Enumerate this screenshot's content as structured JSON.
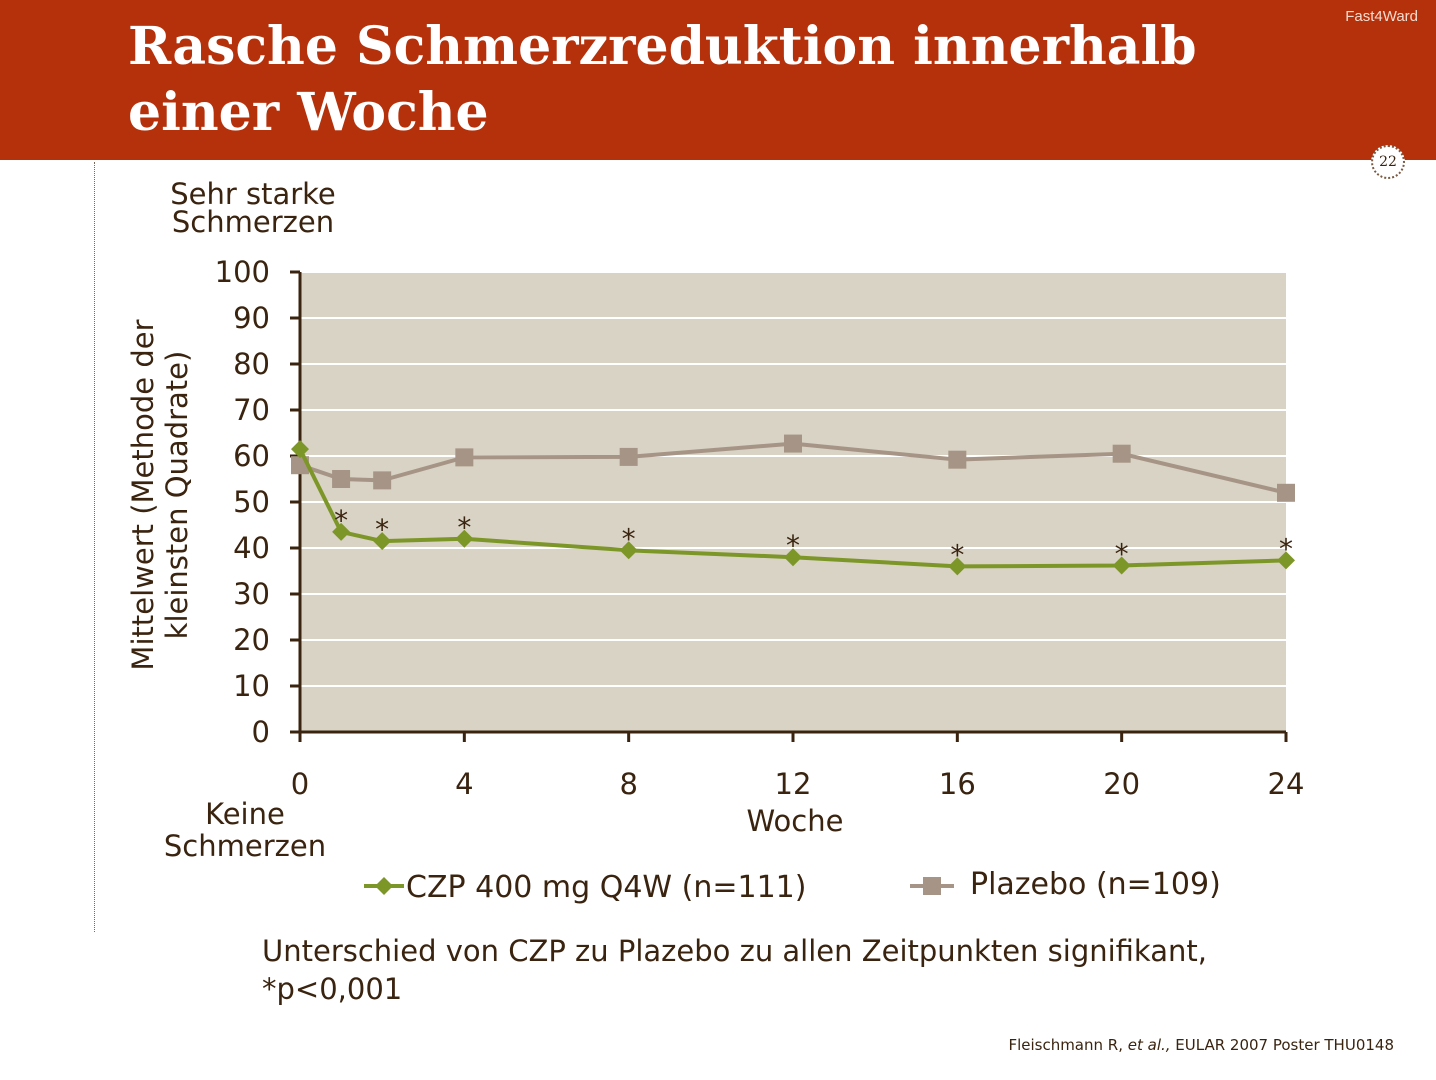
{
  "header": {
    "title": "Rasche Schmerzreduktion innerhalb einer Woche",
    "brand": "Fast4Ward",
    "page_number": "22"
  },
  "colors": {
    "banner": "#b5310c",
    "czp": "#7d9628",
    "placebo": "#a69586",
    "plot_bg": "#d8d3c4",
    "axis": "#3a2410"
  },
  "chart_data": {
    "type": "line",
    "title": "",
    "xlabel": "Woche",
    "ylabel": "Mittelwert (Methode der kleinsten Quadrate)",
    "y_top_label": "Sehr starke Schmerzen",
    "y_bottom_label": "Keine Schmerzen",
    "xlim": [
      0,
      24
    ],
    "ylim": [
      0,
      100
    ],
    "x_ticks": [
      0,
      4,
      8,
      12,
      16,
      20,
      24
    ],
    "y_ticks": [
      0,
      10,
      20,
      30,
      40,
      50,
      60,
      70,
      80,
      90,
      100
    ],
    "grid": true,
    "legend_position": "bottom",
    "series": [
      {
        "name": "CZP 400 mg Q4W (n=111)",
        "marker": "diamond",
        "x": [
          0,
          1,
          2,
          4,
          8,
          12,
          16,
          20,
          24
        ],
        "y": [
          61.5,
          43.5,
          41.5,
          42,
          39.5,
          38,
          36,
          36.2,
          37.3
        ]
      },
      {
        "name": "Plazebo (n=109)",
        "marker": "square",
        "x": [
          0,
          1,
          2,
          4,
          8,
          12,
          16,
          20,
          24
        ],
        "y": [
          58,
          55,
          54.7,
          59.7,
          59.8,
          62.7,
          59.2,
          60.5,
          52
        ]
      }
    ],
    "significance_marker": "*",
    "significance_x": [
      1,
      2,
      4,
      8,
      12,
      16,
      20,
      24
    ]
  },
  "footnote": {
    "line1": "Unterschied von CZP zu Plazebo zu allen Zeitpunkten signifikant,",
    "line2": "*p<0,001"
  },
  "source": {
    "prefix": "Fleischmann R, ",
    "italic": "et al.,",
    "suffix": " EULAR 2007 Poster THU0148"
  }
}
